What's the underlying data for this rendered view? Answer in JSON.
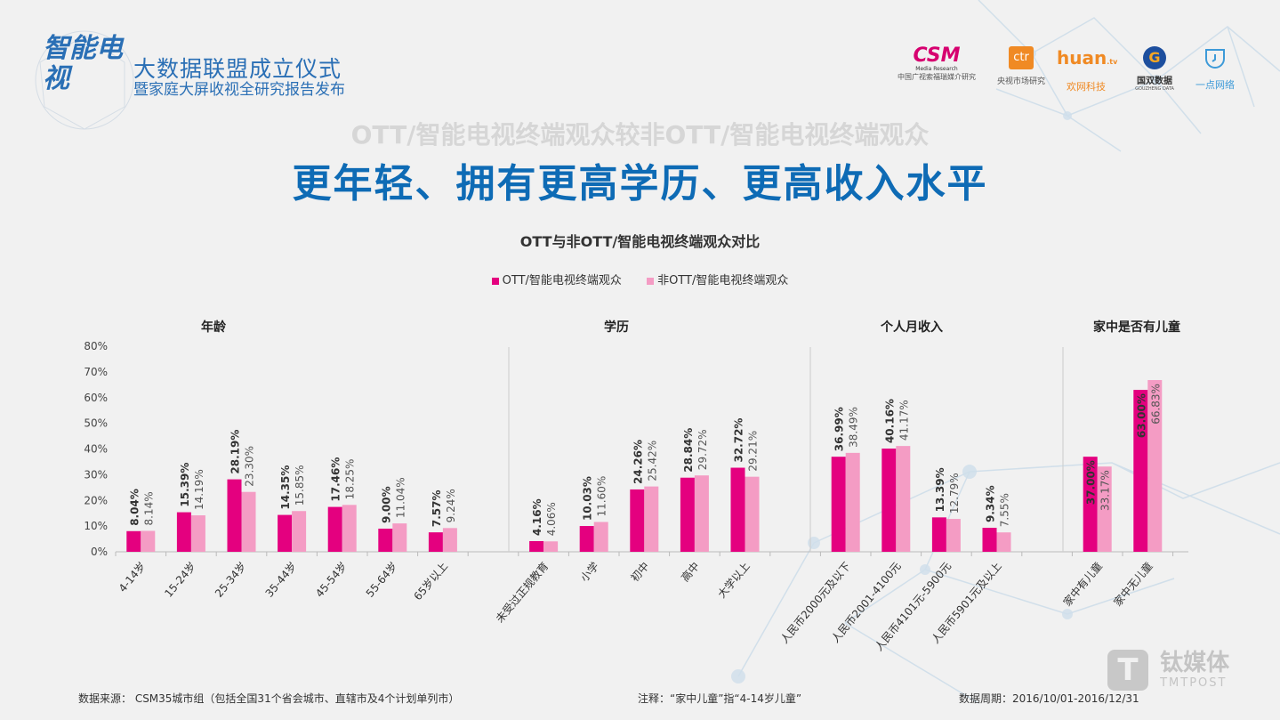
{
  "header": {
    "event_logo_text": "智能电视",
    "event_line1": "大数据联盟成立仪式",
    "event_line2": "暨家庭大屏收视全研究报告发布",
    "partners": [
      {
        "name": "CSM",
        "sub": "Media Research",
        "caption": "中国广视索福瑞媒介研究",
        "color": "#d6006f"
      },
      {
        "name": "ctr",
        "caption": "央视市场研究",
        "color": "#f08a24"
      },
      {
        "name": "huan",
        "sub": ".tv",
        "caption": "欢网科技",
        "color": "#f08a24"
      },
      {
        "name": "G",
        "caption": "国双数据",
        "sub": "GOUZHENG DATA",
        "color": "#1d4f9e"
      },
      {
        "name": "clock",
        "caption": "一点网络",
        "color": "#3d9ad8"
      }
    ]
  },
  "subtitle": "OTT/智能电视终端观众较非OTT/智能电视终端观众",
  "title": "更年轻、拥有更高学历、更高收入水平",
  "chart_data": {
    "type": "bar",
    "title": "OTT与非OTT/智能电视终端观众对比",
    "ylim": [
      0,
      80
    ],
    "yticks": [
      "0%",
      "10%",
      "20%",
      "30%",
      "40%",
      "50%",
      "60%",
      "70%",
      "80%"
    ],
    "legend_position": "top",
    "grid": false,
    "colors": {
      "ott": "#e4007f",
      "non_ott": "#f49cc4"
    },
    "groups": [
      {
        "label": "年龄",
        "categories": [
          "4-14岁",
          "15-24岁",
          "25-34岁",
          "35-44岁",
          "45-54岁",
          "55-64岁",
          "65岁以上"
        ]
      },
      {
        "label": "学历",
        "categories": [
          "未受过正规教育",
          "小学",
          "初中",
          "高中",
          "大学以上"
        ]
      },
      {
        "label": "个人月收入",
        "categories": [
          "人民币2000元及以下",
          "人民币2001-4100元",
          "人民币4101元-5900元",
          "人民币5901元及以上"
        ]
      },
      {
        "label": "家中是否有儿童",
        "categories": [
          "家中有儿童",
          "家中无儿童"
        ]
      }
    ],
    "series": [
      {
        "name": "OTT/智能电视终端观众",
        "values": [
          8.04,
          15.39,
          28.19,
          14.35,
          17.46,
          9.0,
          7.57,
          4.16,
          10.03,
          24.26,
          28.84,
          32.72,
          36.99,
          40.16,
          13.39,
          9.34,
          37.0,
          63.0
        ],
        "labels": [
          "8.04%",
          "15.39%",
          "28.19%",
          "14.35%",
          "17.46%",
          "9.00%",
          "7.57%",
          "4.16%",
          "10.03%",
          "24.26%",
          "28.84%",
          "32.72%",
          "36.99%",
          "40.16%",
          "13.39%",
          "9.34%",
          "37.00%",
          "63.00%"
        ]
      },
      {
        "name": "非OTT/智能电视终端观众",
        "values": [
          8.14,
          14.19,
          23.3,
          15.85,
          18.25,
          11.04,
          9.24,
          4.06,
          11.6,
          25.42,
          29.72,
          29.21,
          38.49,
          41.17,
          12.79,
          7.55,
          33.17,
          66.83
        ],
        "labels": [
          "8.14%",
          "14.19%",
          "23.30%",
          "15.85%",
          "18.25%",
          "11.04%",
          "9.24%",
          "4.06%",
          "11.60%",
          "25.42%",
          "29.72%",
          "29.21%",
          "38.49%",
          "41.17%",
          "12.79%",
          "7.55%",
          "33.17%",
          "66.83%"
        ]
      }
    ]
  },
  "footer": {
    "source": "数据来源： CSM35城市组（包括全国31个省会城市、直辖市及4个计划单列市）",
    "note": "注释：“家中儿童”指“4-14岁儿童”",
    "period": "数据周期：2016/10/01-2016/12/31"
  },
  "watermark": {
    "cn": "钛媒体",
    "en": "TMTPOST"
  }
}
